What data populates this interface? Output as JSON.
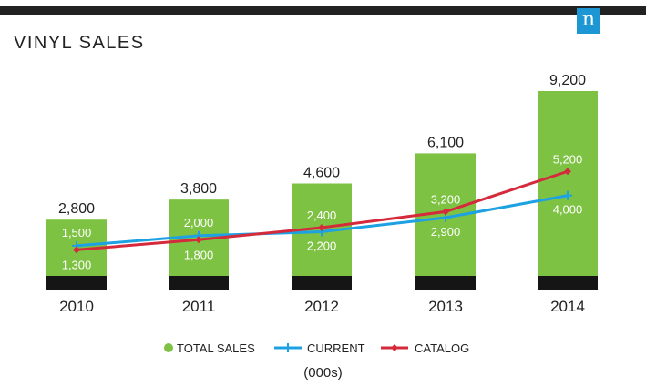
{
  "title": "VINYL SALES",
  "logo": "n",
  "chart_data": {
    "type": "bar",
    "title": "VINYL SALES",
    "categories": [
      "2010",
      "2011",
      "2012",
      "2013",
      "2014"
    ],
    "series": [
      {
        "name": "TOTAL SALES",
        "kind": "bar",
        "values": [
          2800,
          3800,
          4600,
          6100,
          9200
        ],
        "labels": [
          "2,800",
          "3,800",
          "4,600",
          "6,100",
          "9,200"
        ]
      },
      {
        "name": "CURRENT",
        "kind": "line",
        "values": [
          1500,
          2000,
          2200,
          2900,
          4000
        ],
        "labels": [
          "1,500",
          "2,000",
          "2,200",
          "2,900",
          "4,000"
        ]
      },
      {
        "name": "CATALOG",
        "kind": "line",
        "values": [
          1300,
          1800,
          2400,
          3200,
          5200
        ],
        "labels": [
          "1,300",
          "1,800",
          "2,400",
          "3,200",
          "5,200"
        ]
      }
    ],
    "units": "(000s)",
    "ylim": [
      0,
      9200
    ],
    "legend": "bottom"
  },
  "colors": {
    "bar": "#7dc242",
    "current": "#1da1e2",
    "catalog": "#d42a3c",
    "band": "#151515",
    "logo": "#1d97d3"
  }
}
